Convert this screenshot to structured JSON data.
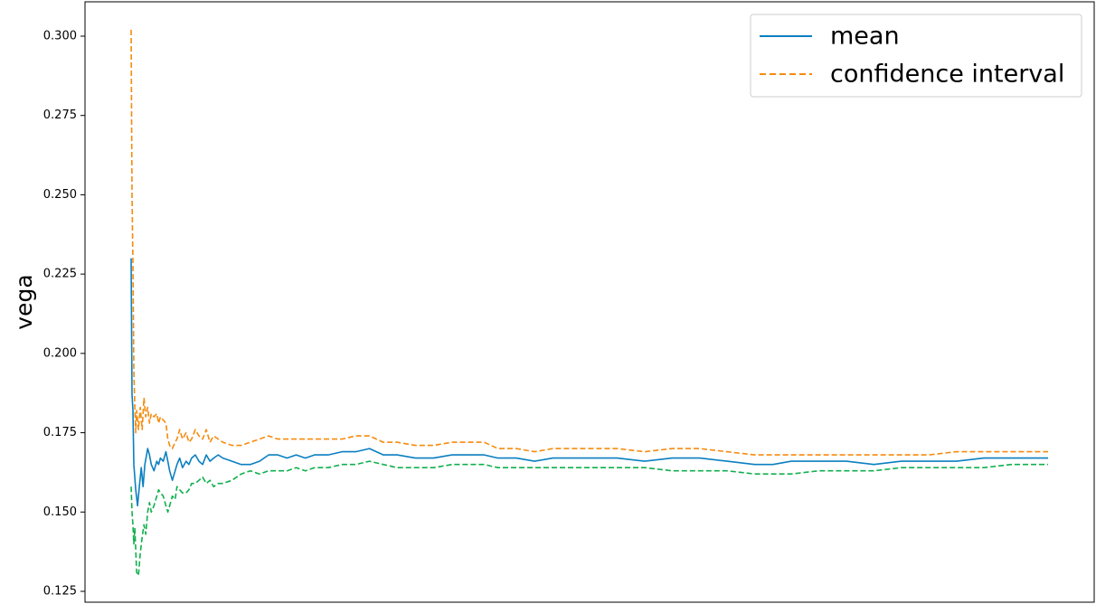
{
  "chart_data": {
    "type": "line",
    "title": "",
    "xlabel": "",
    "ylabel": "vega",
    "x_range": [
      0,
      1000
    ],
    "ylim": [
      0.12,
      0.31
    ],
    "y_ticks": [
      0.125,
      0.15,
      0.175,
      0.2,
      0.225,
      0.25,
      0.275,
      0.3
    ],
    "y_tick_labels": [
      "0.125",
      "0.150",
      "0.175",
      "0.200",
      "0.225",
      "0.250",
      "0.275",
      "0.300"
    ],
    "x_ticks_visible": false,
    "grid": false,
    "legend": {
      "placement": "top-right",
      "entries": [
        {
          "label": "mean",
          "color": "#0a7fc1",
          "style": "solid"
        },
        {
          "label": "confidence interval",
          "color": "#f58b0e",
          "style": "dashed"
        }
      ]
    },
    "series": [
      {
        "name": "mean",
        "color": "#0a7fc1",
        "style": "solid",
        "x": [
          0,
          1,
          2,
          3,
          5,
          7,
          9,
          11,
          13,
          15,
          18,
          20,
          22,
          25,
          28,
          30,
          32,
          35,
          38,
          40,
          42,
          45,
          48,
          50,
          53,
          56,
          60,
          63,
          66,
          70,
          74,
          78,
          82,
          86,
          90,
          95,
          100,
          110,
          120,
          130,
          140,
          150,
          160,
          170,
          180,
          190,
          200,
          215,
          230,
          245,
          260,
          275,
          290,
          310,
          330,
          350,
          370,
          385,
          400,
          420,
          440,
          460,
          480,
          500,
          530,
          560,
          590,
          620,
          650,
          680,
          700,
          720,
          750,
          780,
          810,
          840,
          870,
          900,
          930,
          960,
          990,
          1000
        ],
        "y": [
          0.23,
          0.187,
          0.182,
          0.165,
          0.157,
          0.152,
          0.158,
          0.164,
          0.158,
          0.165,
          0.17,
          0.168,
          0.165,
          0.163,
          0.166,
          0.165,
          0.167,
          0.166,
          0.169,
          0.166,
          0.163,
          0.16,
          0.163,
          0.165,
          0.167,
          0.164,
          0.166,
          0.165,
          0.167,
          0.168,
          0.166,
          0.165,
          0.168,
          0.166,
          0.167,
          0.168,
          0.167,
          0.166,
          0.165,
          0.165,
          0.166,
          0.168,
          0.168,
          0.167,
          0.168,
          0.167,
          0.168,
          0.168,
          0.169,
          0.169,
          0.17,
          0.168,
          0.168,
          0.167,
          0.167,
          0.168,
          0.168,
          0.168,
          0.167,
          0.167,
          0.166,
          0.167,
          0.167,
          0.167,
          0.167,
          0.166,
          0.167,
          0.167,
          0.166,
          0.165,
          0.165,
          0.166,
          0.166,
          0.166,
          0.165,
          0.166,
          0.166,
          0.166,
          0.167,
          0.167,
          0.167,
          0.167
        ]
      },
      {
        "name": "confidence interval",
        "color": "#f58b0e",
        "style": "dashed",
        "x": [
          0,
          1,
          2,
          3,
          4,
          5,
          6,
          8,
          10,
          12,
          14,
          16,
          18,
          20,
          22,
          25,
          28,
          30,
          32,
          35,
          38,
          40,
          42,
          45,
          48,
          50,
          53,
          56,
          60,
          63,
          66,
          70,
          74,
          78,
          82,
          86,
          90,
          95,
          100,
          110,
          120,
          130,
          140,
          150,
          160,
          170,
          180,
          190,
          200,
          215,
          230,
          245,
          260,
          275,
          290,
          310,
          330,
          350,
          370,
          385,
          400,
          420,
          440,
          460,
          480,
          500,
          530,
          560,
          590,
          620,
          650,
          680,
          700,
          720,
          750,
          780,
          810,
          840,
          870,
          900,
          930,
          960,
          990,
          1000
        ],
        "y": [
          0.302,
          0.25,
          0.228,
          0.195,
          0.183,
          0.175,
          0.182,
          0.176,
          0.183,
          0.176,
          0.186,
          0.18,
          0.183,
          0.178,
          0.181,
          0.18,
          0.181,
          0.178,
          0.18,
          0.179,
          0.178,
          0.173,
          0.171,
          0.17,
          0.172,
          0.173,
          0.176,
          0.173,
          0.175,
          0.172,
          0.173,
          0.176,
          0.174,
          0.173,
          0.176,
          0.172,
          0.174,
          0.173,
          0.172,
          0.171,
          0.171,
          0.172,
          0.173,
          0.174,
          0.173,
          0.173,
          0.173,
          0.173,
          0.173,
          0.173,
          0.173,
          0.174,
          0.174,
          0.172,
          0.172,
          0.171,
          0.171,
          0.172,
          0.172,
          0.172,
          0.17,
          0.17,
          0.169,
          0.17,
          0.17,
          0.17,
          0.17,
          0.169,
          0.17,
          0.17,
          0.169,
          0.168,
          0.168,
          0.168,
          0.168,
          0.168,
          0.168,
          0.168,
          0.168,
          0.169,
          0.169,
          0.169,
          0.169,
          0.169
        ]
      },
      {
        "name": "",
        "color": "#10b04d",
        "style": "dashed",
        "x": [
          0,
          1,
          2,
          3,
          4,
          5,
          6,
          8,
          10,
          12,
          14,
          16,
          18,
          20,
          22,
          25,
          28,
          30,
          32,
          35,
          38,
          40,
          42,
          45,
          48,
          50,
          53,
          56,
          60,
          63,
          66,
          70,
          74,
          78,
          82,
          86,
          90,
          95,
          100,
          110,
          120,
          130,
          140,
          150,
          160,
          170,
          180,
          190,
          200,
          215,
          230,
          245,
          260,
          275,
          290,
          310,
          330,
          350,
          370,
          385,
          400,
          420,
          440,
          460,
          480,
          500,
          530,
          560,
          590,
          620,
          650,
          680,
          700,
          720,
          750,
          780,
          810,
          840,
          870,
          900,
          930,
          960,
          990,
          1000
        ],
        "y": [
          0.158,
          0.15,
          0.146,
          0.14,
          0.145,
          0.138,
          0.131,
          0.13,
          0.137,
          0.142,
          0.146,
          0.143,
          0.15,
          0.153,
          0.15,
          0.152,
          0.155,
          0.157,
          0.156,
          0.155,
          0.152,
          0.15,
          0.152,
          0.155,
          0.154,
          0.158,
          0.157,
          0.156,
          0.156,
          0.157,
          0.159,
          0.159,
          0.16,
          0.161,
          0.159,
          0.16,
          0.158,
          0.159,
          0.159,
          0.16,
          0.162,
          0.163,
          0.162,
          0.163,
          0.163,
          0.163,
          0.164,
          0.163,
          0.164,
          0.164,
          0.165,
          0.165,
          0.166,
          0.165,
          0.164,
          0.164,
          0.164,
          0.165,
          0.165,
          0.165,
          0.164,
          0.164,
          0.164,
          0.164,
          0.164,
          0.164,
          0.164,
          0.164,
          0.163,
          0.163,
          0.163,
          0.162,
          0.162,
          0.162,
          0.163,
          0.163,
          0.163,
          0.164,
          0.164,
          0.164,
          0.164,
          0.165,
          0.165,
          0.165
        ]
      }
    ]
  }
}
